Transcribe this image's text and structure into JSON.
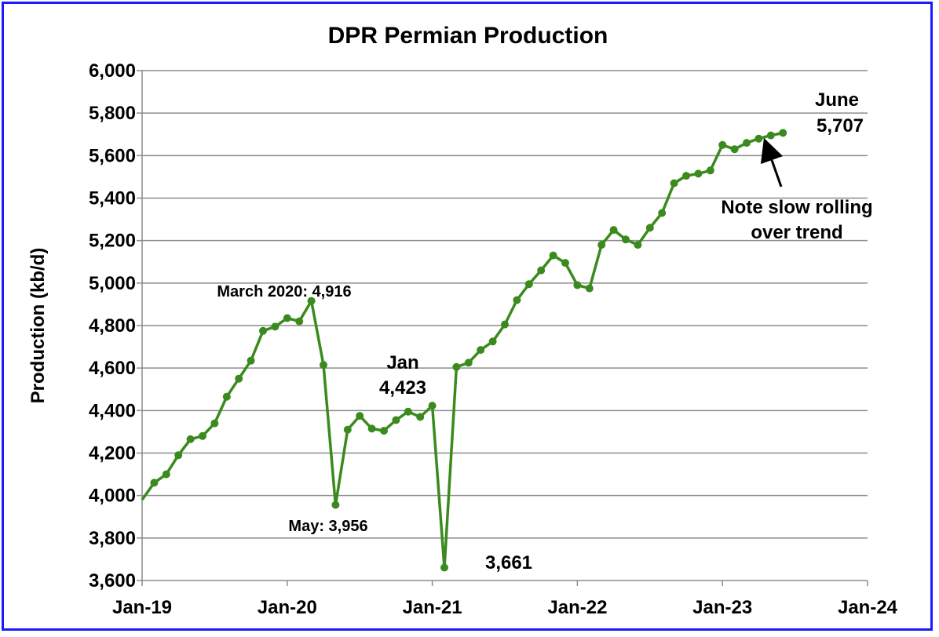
{
  "chart_data": {
    "type": "line",
    "title": "DPR Permian Production",
    "xlabel": "",
    "ylabel": "Production (kb/d)",
    "ylim": [
      3600,
      6000
    ],
    "yticks": [
      3600,
      3800,
      4000,
      4200,
      4400,
      4600,
      4800,
      5000,
      5200,
      5400,
      5600,
      5800,
      6000
    ],
    "ytick_labels": [
      "3,600",
      "3,800",
      "4,000",
      "4,200",
      "4,400",
      "4,600",
      "4,800",
      "5,000",
      "5,200",
      "5,400",
      "5,600",
      "5,800",
      "6,000"
    ],
    "xlim": [
      "2019-01",
      "2024-01"
    ],
    "xtick_labels": [
      "Jan-19",
      "Jan-20",
      "Jan-21",
      "Jan-22",
      "Jan-23",
      "Jan-24"
    ],
    "grid": "horizontal",
    "line_color": "#3a8a1e",
    "series": [
      {
        "x": [
          "2019-01",
          "2019-02",
          "2019-03",
          "2019-04",
          "2019-05",
          "2019-06",
          "2019-07",
          "2019-08",
          "2019-09",
          "2019-10",
          "2019-11",
          "2019-12",
          "2020-01",
          "2020-02",
          "2020-03",
          "2020-04",
          "2020-05",
          "2020-06",
          "2020-07",
          "2020-08",
          "2020-09",
          "2020-10",
          "2020-11",
          "2020-12",
          "2021-01",
          "2021-02",
          "2021-03",
          "2021-04",
          "2021-05",
          "2021-06",
          "2021-07",
          "2021-08",
          "2021-09",
          "2021-10",
          "2021-11",
          "2021-12",
          "2022-01",
          "2022-02",
          "2022-03",
          "2022-04",
          "2022-05",
          "2022-06",
          "2022-07",
          "2022-08",
          "2022-09",
          "2022-10",
          "2022-11",
          "2022-12",
          "2023-01",
          "2023-02",
          "2023-03",
          "2023-04",
          "2023-05",
          "2023-06"
        ],
        "values": [
          3980,
          4060,
          4100,
          4190,
          4265,
          4280,
          4340,
          4465,
          4550,
          4635,
          4775,
          4795,
          4835,
          4820,
          4916,
          4615,
          3956,
          4310,
          4375,
          4315,
          4305,
          4355,
          4395,
          4370,
          4423,
          3661,
          4605,
          4625,
          4685,
          4725,
          4805,
          4920,
          4995,
          5060,
          5130,
          5095,
          4990,
          4975,
          5180,
          5250,
          5205,
          5180,
          5260,
          5330,
          5470,
          5505,
          5515,
          5530,
          5650,
          5630,
          5660,
          5680,
          5695,
          5707
        ]
      }
    ],
    "annotations": [
      {
        "name": "march-2020",
        "text": "March 2020: 4,916"
      },
      {
        "name": "may",
        "text": "May: 3,956"
      },
      {
        "name": "jan-2021-label",
        "text": "Jan"
      },
      {
        "name": "jan-2021-value",
        "text": "4,423"
      },
      {
        "name": "feb-2021-value",
        "text": "3,661"
      },
      {
        "name": "june-label",
        "text": "June"
      },
      {
        "name": "june-value",
        "text": "5,707"
      },
      {
        "name": "note-line1",
        "text": "Note slow rolling"
      },
      {
        "name": "note-line2",
        "text": "over trend"
      }
    ]
  }
}
